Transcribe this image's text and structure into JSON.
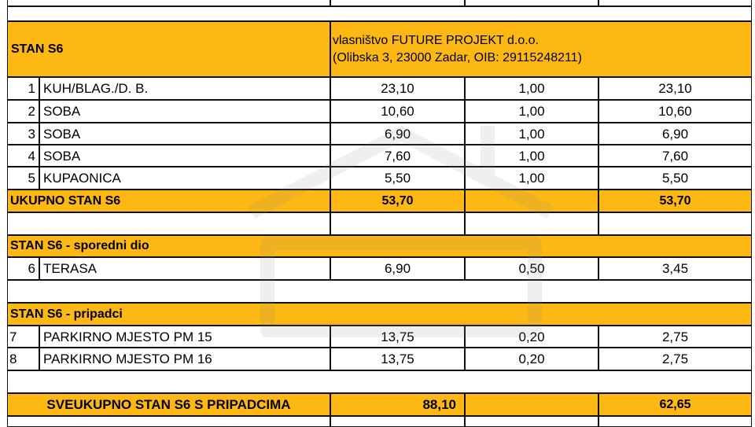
{
  "apartment": {
    "title": "STAN S6",
    "owner_line1": "vlasništvo FUTURE PROJEKT d.o.o.",
    "owner_line2": "(Olibska 3, 23000 Zadar, OIB: 29115248211)",
    "rows": [
      {
        "no": "1",
        "name": "KUH/BLAG./D. B.",
        "area": "23,10",
        "coef": "1,00",
        "result": "23,10"
      },
      {
        "no": "2",
        "name": "SOBA",
        "area": "10,60",
        "coef": "1,00",
        "result": "10,60"
      },
      {
        "no": "3",
        "name": "SOBA",
        "area": "6,90",
        "coef": "1,00",
        "result": "6,90"
      },
      {
        "no": "4",
        "name": "SOBA",
        "area": "7,60",
        "coef": "1,00",
        "result": "7,60"
      },
      {
        "no": "5",
        "name": "KUPAONICA",
        "area": "5,50",
        "coef": "1,00",
        "result": "5,50"
      }
    ],
    "total_label": "UKUPNO STAN S6",
    "total_area": "53,70",
    "total_result": "53,70"
  },
  "side_part": {
    "title": "STAN S6 - sporedni dio",
    "rows": [
      {
        "no": "6",
        "name": "TERASA",
        "area": "6,90",
        "coef": "0,50",
        "result": "3,45"
      }
    ]
  },
  "belongings": {
    "title": "STAN S6 - pripadci",
    "rows": [
      {
        "no": "7",
        "name": "PARKIRNO MJESTO PM 15",
        "area": "13,75",
        "coef": "0,20",
        "result": "2,75"
      },
      {
        "no": "8",
        "name": "PARKIRNO MJESTO PM 16",
        "area": "13,75",
        "coef": "0,20",
        "result": "2,75"
      }
    ]
  },
  "grand_total": {
    "label": "SVEUKUPNO STAN S6 S PRIPADCIMA",
    "area": "88,10",
    "result": "62,65"
  },
  "colors": {
    "header_fill": "#fdb813",
    "border": "#111111"
  },
  "watermark": {
    "icon": "house-logo-watermark-icon"
  }
}
